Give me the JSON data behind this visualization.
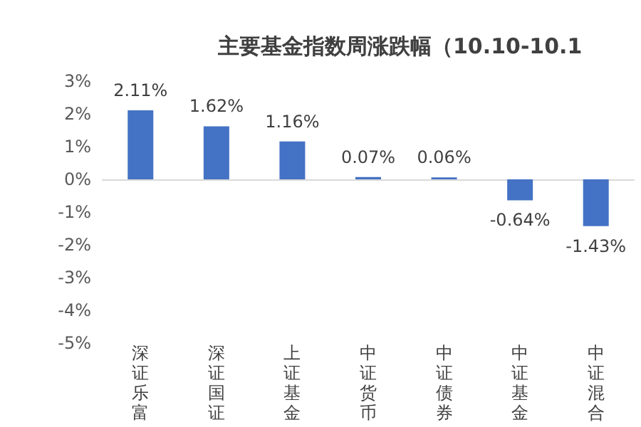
{
  "chart_data": {
    "type": "bar",
    "title": "主要基金指数周涨跌幅（10.10-10.1",
    "categories": [
      "深证乐富",
      "深证国证",
      "上证基金",
      "中证货币",
      "中证债券",
      "中证基金",
      "中证混合"
    ],
    "values": [
      2.11,
      1.62,
      1.16,
      0.07,
      0.06,
      -0.64,
      -1.43
    ],
    "value_labels": [
      "2.11%",
      "1.62%",
      "1.16%",
      "0.07%",
      "0.06%",
      "-0.64%",
      "-1.43%"
    ],
    "color": "#4472c4",
    "ylim": [
      -5,
      3
    ],
    "yticks": [
      {
        "value": -5,
        "label": "-5%"
      },
      {
        "value": -4,
        "label": "-4%"
      },
      {
        "value": -3,
        "label": "-3%"
      },
      {
        "value": -2,
        "label": "-2%"
      },
      {
        "value": -1,
        "label": "-1%"
      },
      {
        "value": 0,
        "label": "0%"
      },
      {
        "value": 1,
        "label": "1%"
      },
      {
        "value": 2,
        "label": "2%"
      },
      {
        "value": 3,
        "label": "3%"
      }
    ]
  }
}
